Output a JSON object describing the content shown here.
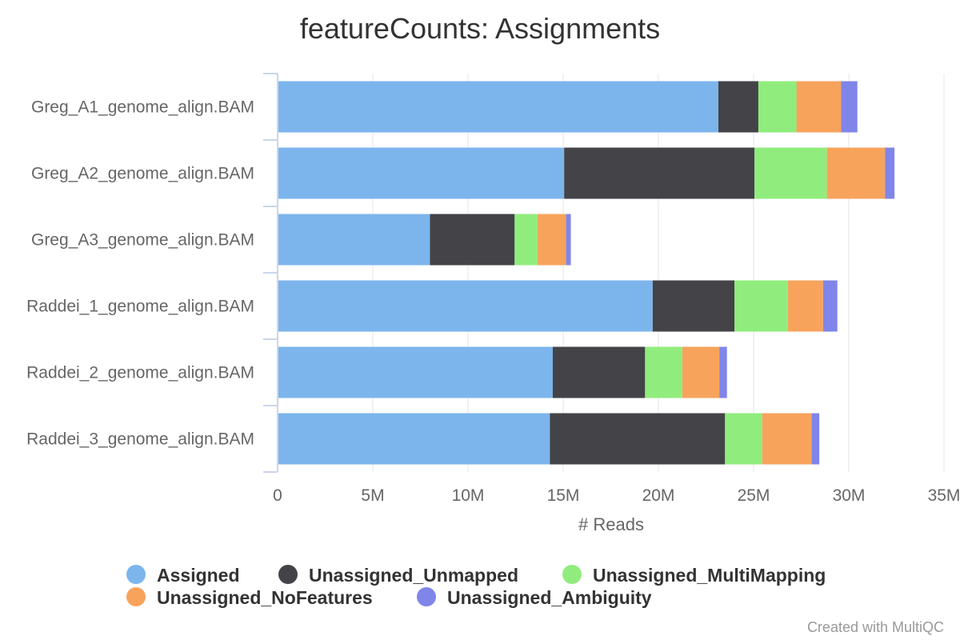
{
  "chart_data": {
    "type": "bar",
    "orientation": "horizontal",
    "stacked": true,
    "title": "featureCounts: Assignments",
    "xlabel": "# Reads",
    "ylabel": "",
    "xlim": [
      0,
      35000000
    ],
    "x_ticks": [
      0,
      5000000,
      10000000,
      15000000,
      20000000,
      25000000,
      30000000,
      35000000
    ],
    "x_tick_labels": [
      "0",
      "5M",
      "10M",
      "15M",
      "20M",
      "25M",
      "30M",
      "35M"
    ],
    "grid": true,
    "legend_position": "bottom",
    "categories": [
      "Greg_A1_genome_align.BAM",
      "Greg_A2_genome_align.BAM",
      "Greg_A3_genome_align.BAM",
      "Raddei_1_genome_align.BAM",
      "Raddei_2_genome_align.BAM",
      "Raddei_3_genome_align.BAM"
    ],
    "series": [
      {
        "name": "Assigned",
        "color": "#7cb5ec",
        "values": [
          23150000,
          15050000,
          8000000,
          19700000,
          14450000,
          14300000
        ]
      },
      {
        "name": "Unassigned_Unmapped",
        "color": "#434348",
        "values": [
          2100000,
          10000000,
          4450000,
          4300000,
          4850000,
          9200000
        ]
      },
      {
        "name": "Unassigned_MultiMapping",
        "color": "#90ed7d",
        "values": [
          2000000,
          3800000,
          1200000,
          2800000,
          1950000,
          1950000
        ]
      },
      {
        "name": "Unassigned_NoFeatures",
        "color": "#f7a35c",
        "values": [
          2350000,
          3050000,
          1500000,
          1850000,
          1950000,
          2600000
        ]
      },
      {
        "name": "Unassigned_Ambiguity",
        "color": "#8085e9",
        "values": [
          850000,
          500000,
          250000,
          750000,
          400000,
          400000
        ]
      }
    ]
  },
  "credit": "Created with MultiQC"
}
